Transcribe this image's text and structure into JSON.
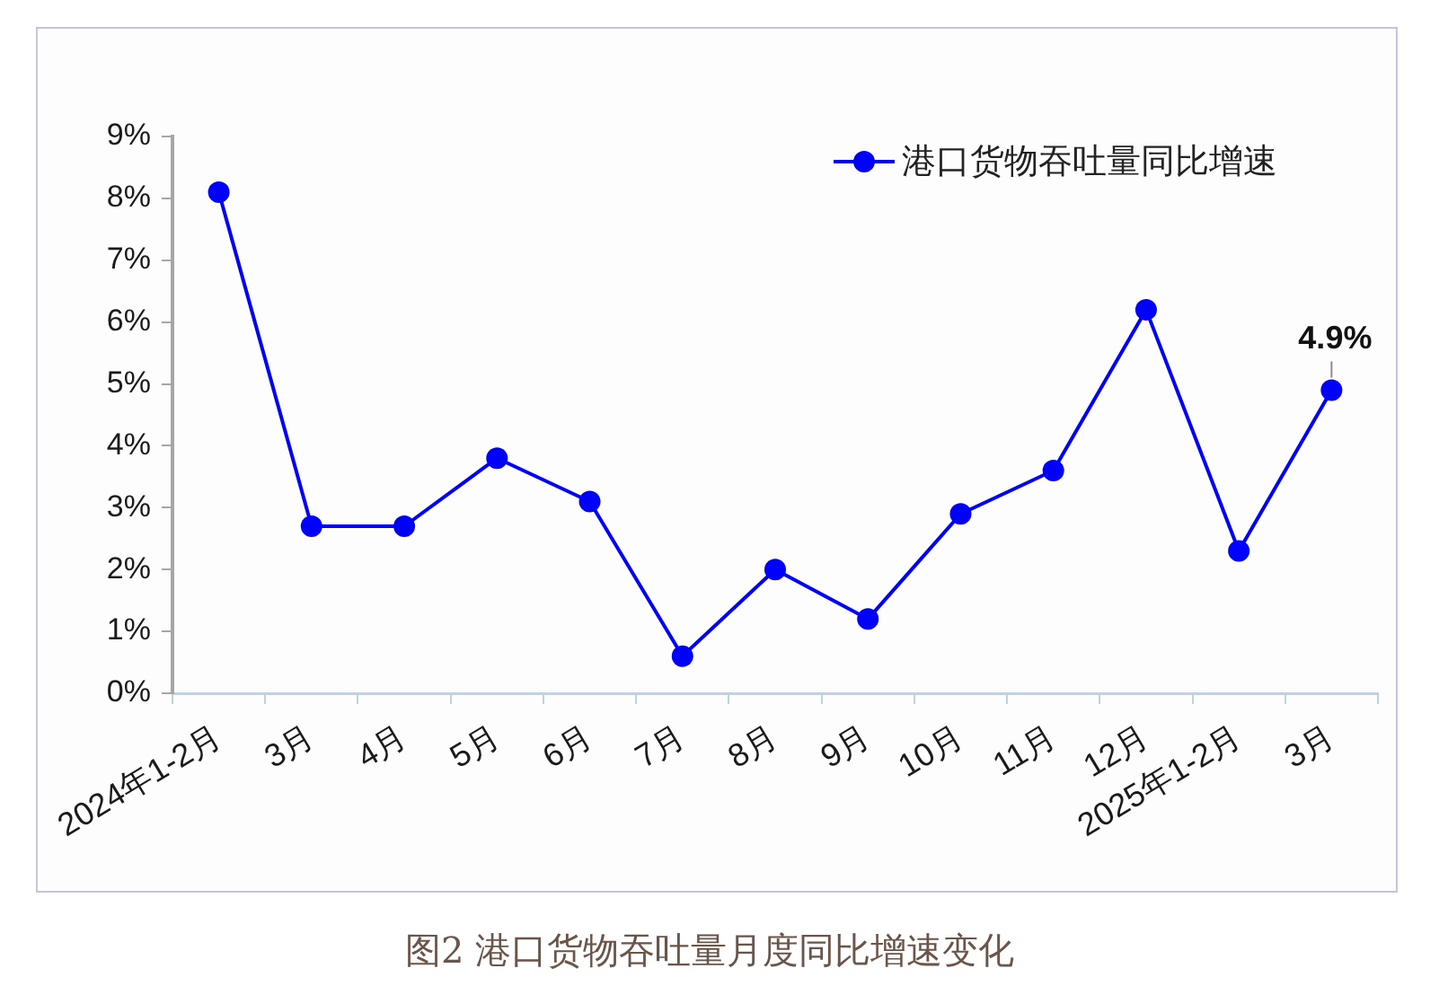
{
  "chart_data": {
    "type": "line",
    "categories": [
      "2024年1-2月",
      "3月",
      "4月",
      "5月",
      "6月",
      "7月",
      "8月",
      "9月",
      "10月",
      "11月",
      "12月",
      "2025年1-2月",
      "3月"
    ],
    "series": [
      {
        "name": "港口货物吞吐量同比增速",
        "color": "#0000ff",
        "values": [
          8.1,
          2.7,
          2.7,
          3.8,
          3.1,
          0.6,
          2.0,
          1.2,
          2.9,
          3.6,
          6.2,
          2.3,
          4.9
        ],
        "value_labels": [
          null,
          null,
          null,
          null,
          null,
          null,
          null,
          null,
          null,
          null,
          null,
          null,
          "4.9%"
        ]
      }
    ],
    "ylim": [
      0,
      9
    ],
    "yticks": [
      {
        "value": 0,
        "label": "0%"
      },
      {
        "value": 1,
        "label": "1%"
      },
      {
        "value": 2,
        "label": "2%"
      },
      {
        "value": 3,
        "label": "3%"
      },
      {
        "value": 4,
        "label": "4%"
      },
      {
        "value": 5,
        "label": "5%"
      },
      {
        "value": 6,
        "label": "6%"
      },
      {
        "value": 7,
        "label": "7%"
      },
      {
        "value": 8,
        "label": "8%"
      },
      {
        "value": 9,
        "label": "9%"
      }
    ],
    "grid": false,
    "legend": "top right",
    "marker": "circle",
    "line_style": "solid",
    "annotations": [
      "图2 港口货物吞吐量月度同比增速变化"
    ]
  }
}
